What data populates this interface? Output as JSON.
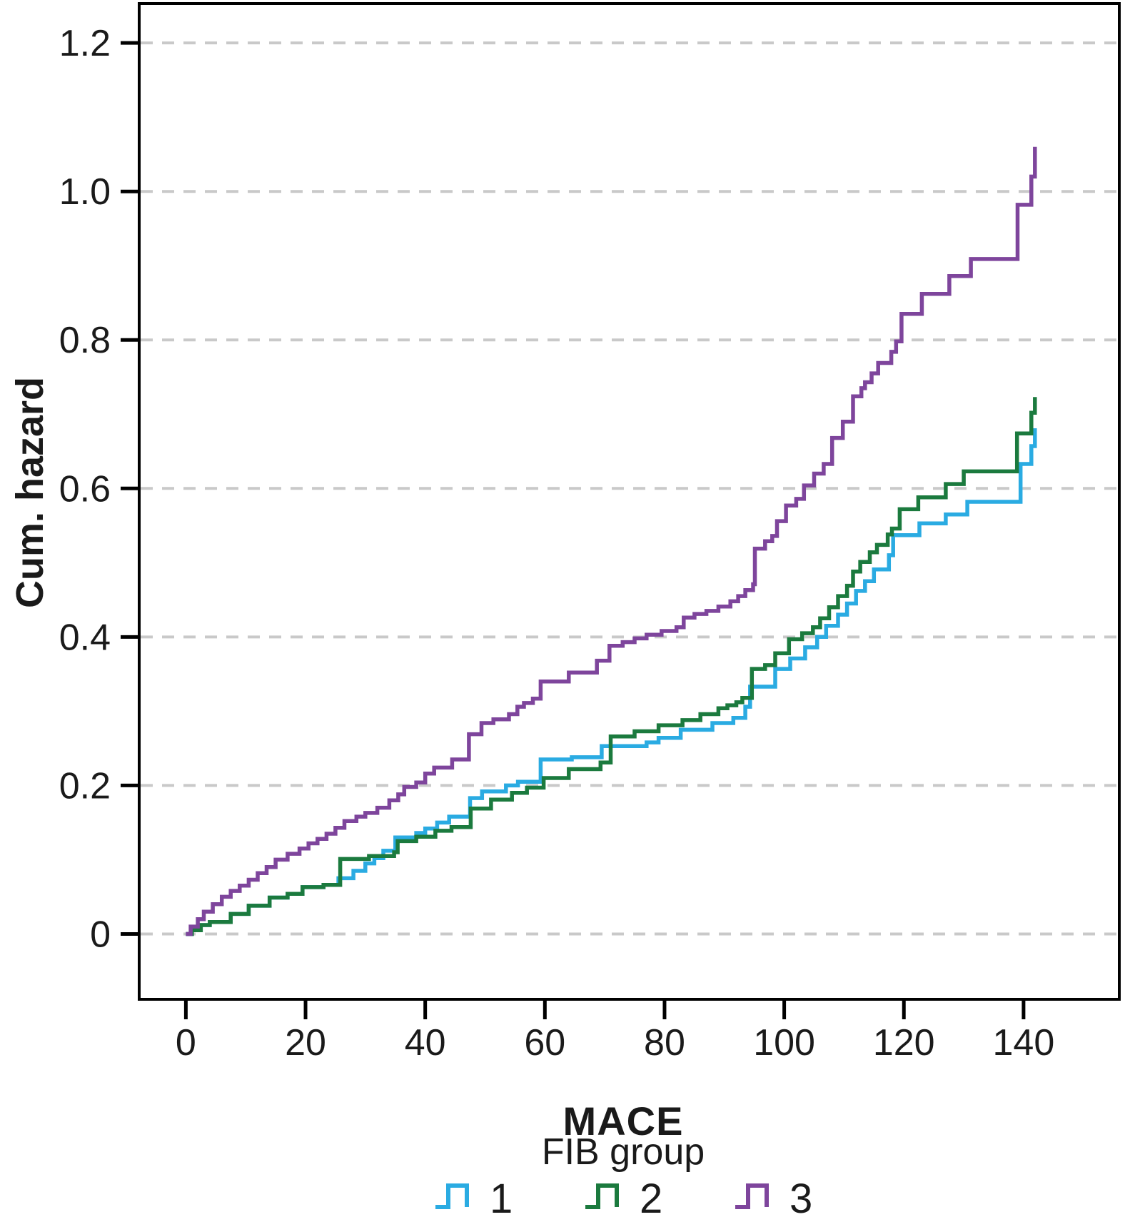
{
  "chart_data": {
    "type": "line",
    "subtype": "step-after",
    "title": "",
    "xlabel": "MACE",
    "ylabel": "Cum. hazard",
    "legend_title": "FIB group",
    "legend_position": "bottom",
    "grid": "horizontal-dashed",
    "xlim": [
      -7.8,
      156
    ],
    "ylim": [
      -0.088,
      1.253
    ],
    "x_tick_values": [
      0,
      20,
      40,
      60,
      80,
      100,
      120,
      140
    ],
    "x_tick_labels": [
      "0",
      "20",
      "40",
      "60",
      "80",
      "100",
      "120",
      "140"
    ],
    "y_tick_values": [
      0,
      0.2,
      0.4,
      0.6,
      0.8,
      1.0,
      1.2
    ],
    "y_tick_labels": [
      "0",
      "0.2",
      "0.4",
      "0.6",
      "0.8",
      "1.0",
      "1.2"
    ],
    "colors": {
      "grid": "#c9c9c9",
      "axis": "#000000",
      "text": "#1a1a1a"
    },
    "series": [
      {
        "name": "1",
        "color": "#2aabe2",
        "points": [
          [
            0,
            0
          ],
          [
            1,
            0.005
          ],
          [
            2.5,
            0.012
          ],
          [
            4,
            0.016
          ],
          [
            7.5,
            0.027
          ],
          [
            10.5,
            0.038
          ],
          [
            14,
            0.049
          ],
          [
            17,
            0.054
          ],
          [
            19.5,
            0.063
          ],
          [
            23,
            0.066
          ],
          [
            25.5,
            0.075
          ],
          [
            28,
            0.085
          ],
          [
            30,
            0.095
          ],
          [
            31.5,
            0.102
          ],
          [
            33,
            0.112
          ],
          [
            35,
            0.13
          ],
          [
            38.5,
            0.136
          ],
          [
            40,
            0.142
          ],
          [
            42,
            0.15
          ],
          [
            44,
            0.158
          ],
          [
            47.5,
            0.183
          ],
          [
            49.5,
            0.192
          ],
          [
            53.5,
            0.2
          ],
          [
            55.5,
            0.205
          ],
          [
            59.3,
            0.235
          ],
          [
            64.5,
            0.238
          ],
          [
            69.5,
            0.253
          ],
          [
            77,
            0.258
          ],
          [
            79,
            0.264
          ],
          [
            82.7,
            0.275
          ],
          [
            88,
            0.284
          ],
          [
            91.5,
            0.291
          ],
          [
            93.5,
            0.306
          ],
          [
            94.3,
            0.333
          ],
          [
            98.5,
            0.357
          ],
          [
            101,
            0.371
          ],
          [
            103.5,
            0.386
          ],
          [
            105.5,
            0.4
          ],
          [
            107,
            0.415
          ],
          [
            109,
            0.43
          ],
          [
            110.5,
            0.445
          ],
          [
            112,
            0.462
          ],
          [
            113.5,
            0.475
          ],
          [
            115,
            0.491
          ],
          [
            117.5,
            0.51
          ],
          [
            118.2,
            0.537
          ],
          [
            122.6,
            0.553
          ],
          [
            127,
            0.565
          ],
          [
            130.6,
            0.582
          ],
          [
            139.5,
            0.633
          ],
          [
            141.3,
            0.657
          ],
          [
            141.9,
            0.681
          ]
        ]
      },
      {
        "name": "2",
        "color": "#1b7a3e",
        "points": [
          [
            0,
            0
          ],
          [
            1,
            0.005
          ],
          [
            2.5,
            0.012
          ],
          [
            4,
            0.016
          ],
          [
            7.5,
            0.027
          ],
          [
            10.5,
            0.038
          ],
          [
            14,
            0.049
          ],
          [
            17,
            0.054
          ],
          [
            19.5,
            0.063
          ],
          [
            23,
            0.066
          ],
          [
            25.8,
            0.101
          ],
          [
            30.6,
            0.105
          ],
          [
            34.8,
            0.11
          ],
          [
            35.4,
            0.125
          ],
          [
            38.5,
            0.131
          ],
          [
            41.7,
            0.139
          ],
          [
            44.4,
            0.144
          ],
          [
            47.6,
            0.169
          ],
          [
            51,
            0.181
          ],
          [
            54.5,
            0.19
          ],
          [
            57,
            0.197
          ],
          [
            59.8,
            0.21
          ],
          [
            64,
            0.222
          ],
          [
            69.3,
            0.231
          ],
          [
            71,
            0.266
          ],
          [
            75,
            0.273
          ],
          [
            79,
            0.281
          ],
          [
            83,
            0.288
          ],
          [
            86,
            0.296
          ],
          [
            89,
            0.304
          ],
          [
            90.5,
            0.308
          ],
          [
            92,
            0.312
          ],
          [
            93,
            0.318
          ],
          [
            94.6,
            0.357
          ],
          [
            96.8,
            0.362
          ],
          [
            98.5,
            0.378
          ],
          [
            100.8,
            0.397
          ],
          [
            103,
            0.405
          ],
          [
            104.8,
            0.413
          ],
          [
            106,
            0.425
          ],
          [
            107.5,
            0.44
          ],
          [
            109,
            0.455
          ],
          [
            110.5,
            0.469
          ],
          [
            111.5,
            0.488
          ],
          [
            112.7,
            0.501
          ],
          [
            114.3,
            0.514
          ],
          [
            115.5,
            0.524
          ],
          [
            117.3,
            0.538
          ],
          [
            118,
            0.546
          ],
          [
            119.3,
            0.572
          ],
          [
            122.4,
            0.588
          ],
          [
            127,
            0.606
          ],
          [
            130,
            0.623
          ],
          [
            138.9,
            0.674
          ],
          [
            141.3,
            0.702
          ],
          [
            141.9,
            0.723
          ]
        ]
      },
      {
        "name": "3",
        "color": "#7e459c",
        "points": [
          [
            0,
            0
          ],
          [
            0.8,
            0.01
          ],
          [
            2,
            0.02
          ],
          [
            3,
            0.03
          ],
          [
            4.5,
            0.04
          ],
          [
            6,
            0.05
          ],
          [
            7.5,
            0.058
          ],
          [
            9,
            0.065
          ],
          [
            10.5,
            0.073
          ],
          [
            12,
            0.082
          ],
          [
            13.5,
            0.09
          ],
          [
            15,
            0.1
          ],
          [
            17,
            0.108
          ],
          [
            19,
            0.115
          ],
          [
            20.5,
            0.122
          ],
          [
            22,
            0.128
          ],
          [
            23.5,
            0.135
          ],
          [
            25,
            0.143
          ],
          [
            26.5,
            0.152
          ],
          [
            28.5,
            0.158
          ],
          [
            30,
            0.163
          ],
          [
            32,
            0.17
          ],
          [
            34,
            0.18
          ],
          [
            35.5,
            0.188
          ],
          [
            36.5,
            0.198
          ],
          [
            38.5,
            0.204
          ],
          [
            40,
            0.216
          ],
          [
            41.5,
            0.224
          ],
          [
            44.5,
            0.235
          ],
          [
            47.3,
            0.269
          ],
          [
            49.4,
            0.284
          ],
          [
            51.4,
            0.289
          ],
          [
            54,
            0.296
          ],
          [
            55.4,
            0.306
          ],
          [
            56.5,
            0.311
          ],
          [
            58,
            0.317
          ],
          [
            59.3,
            0.34
          ],
          [
            64,
            0.352
          ],
          [
            68.7,
            0.368
          ],
          [
            70.8,
            0.388
          ],
          [
            73,
            0.393
          ],
          [
            75,
            0.398
          ],
          [
            77,
            0.403
          ],
          [
            79.5,
            0.408
          ],
          [
            82,
            0.413
          ],
          [
            83.2,
            0.426
          ],
          [
            85,
            0.431
          ],
          [
            87,
            0.435
          ],
          [
            89,
            0.441
          ],
          [
            91,
            0.448
          ],
          [
            92.3,
            0.455
          ],
          [
            93.5,
            0.463
          ],
          [
            94.8,
            0.471
          ],
          [
            95.1,
            0.519
          ],
          [
            96.8,
            0.529
          ],
          [
            98,
            0.536
          ],
          [
            98.8,
            0.556
          ],
          [
            100.3,
            0.577
          ],
          [
            102,
            0.586
          ],
          [
            103.3,
            0.604
          ],
          [
            105,
            0.62
          ],
          [
            106.6,
            0.633
          ],
          [
            108,
            0.668
          ],
          [
            109.8,
            0.69
          ],
          [
            111.5,
            0.724
          ],
          [
            112.9,
            0.735
          ],
          [
            113.5,
            0.743
          ],
          [
            114.6,
            0.755
          ],
          [
            115.7,
            0.769
          ],
          [
            117.9,
            0.784
          ],
          [
            118.7,
            0.798
          ],
          [
            119.6,
            0.835
          ],
          [
            123,
            0.862
          ],
          [
            127.6,
            0.886
          ],
          [
            131.2,
            0.909
          ],
          [
            139,
            0.982
          ],
          [
            141.3,
            1.02
          ],
          [
            141.9,
            1.06
          ]
        ]
      }
    ]
  }
}
